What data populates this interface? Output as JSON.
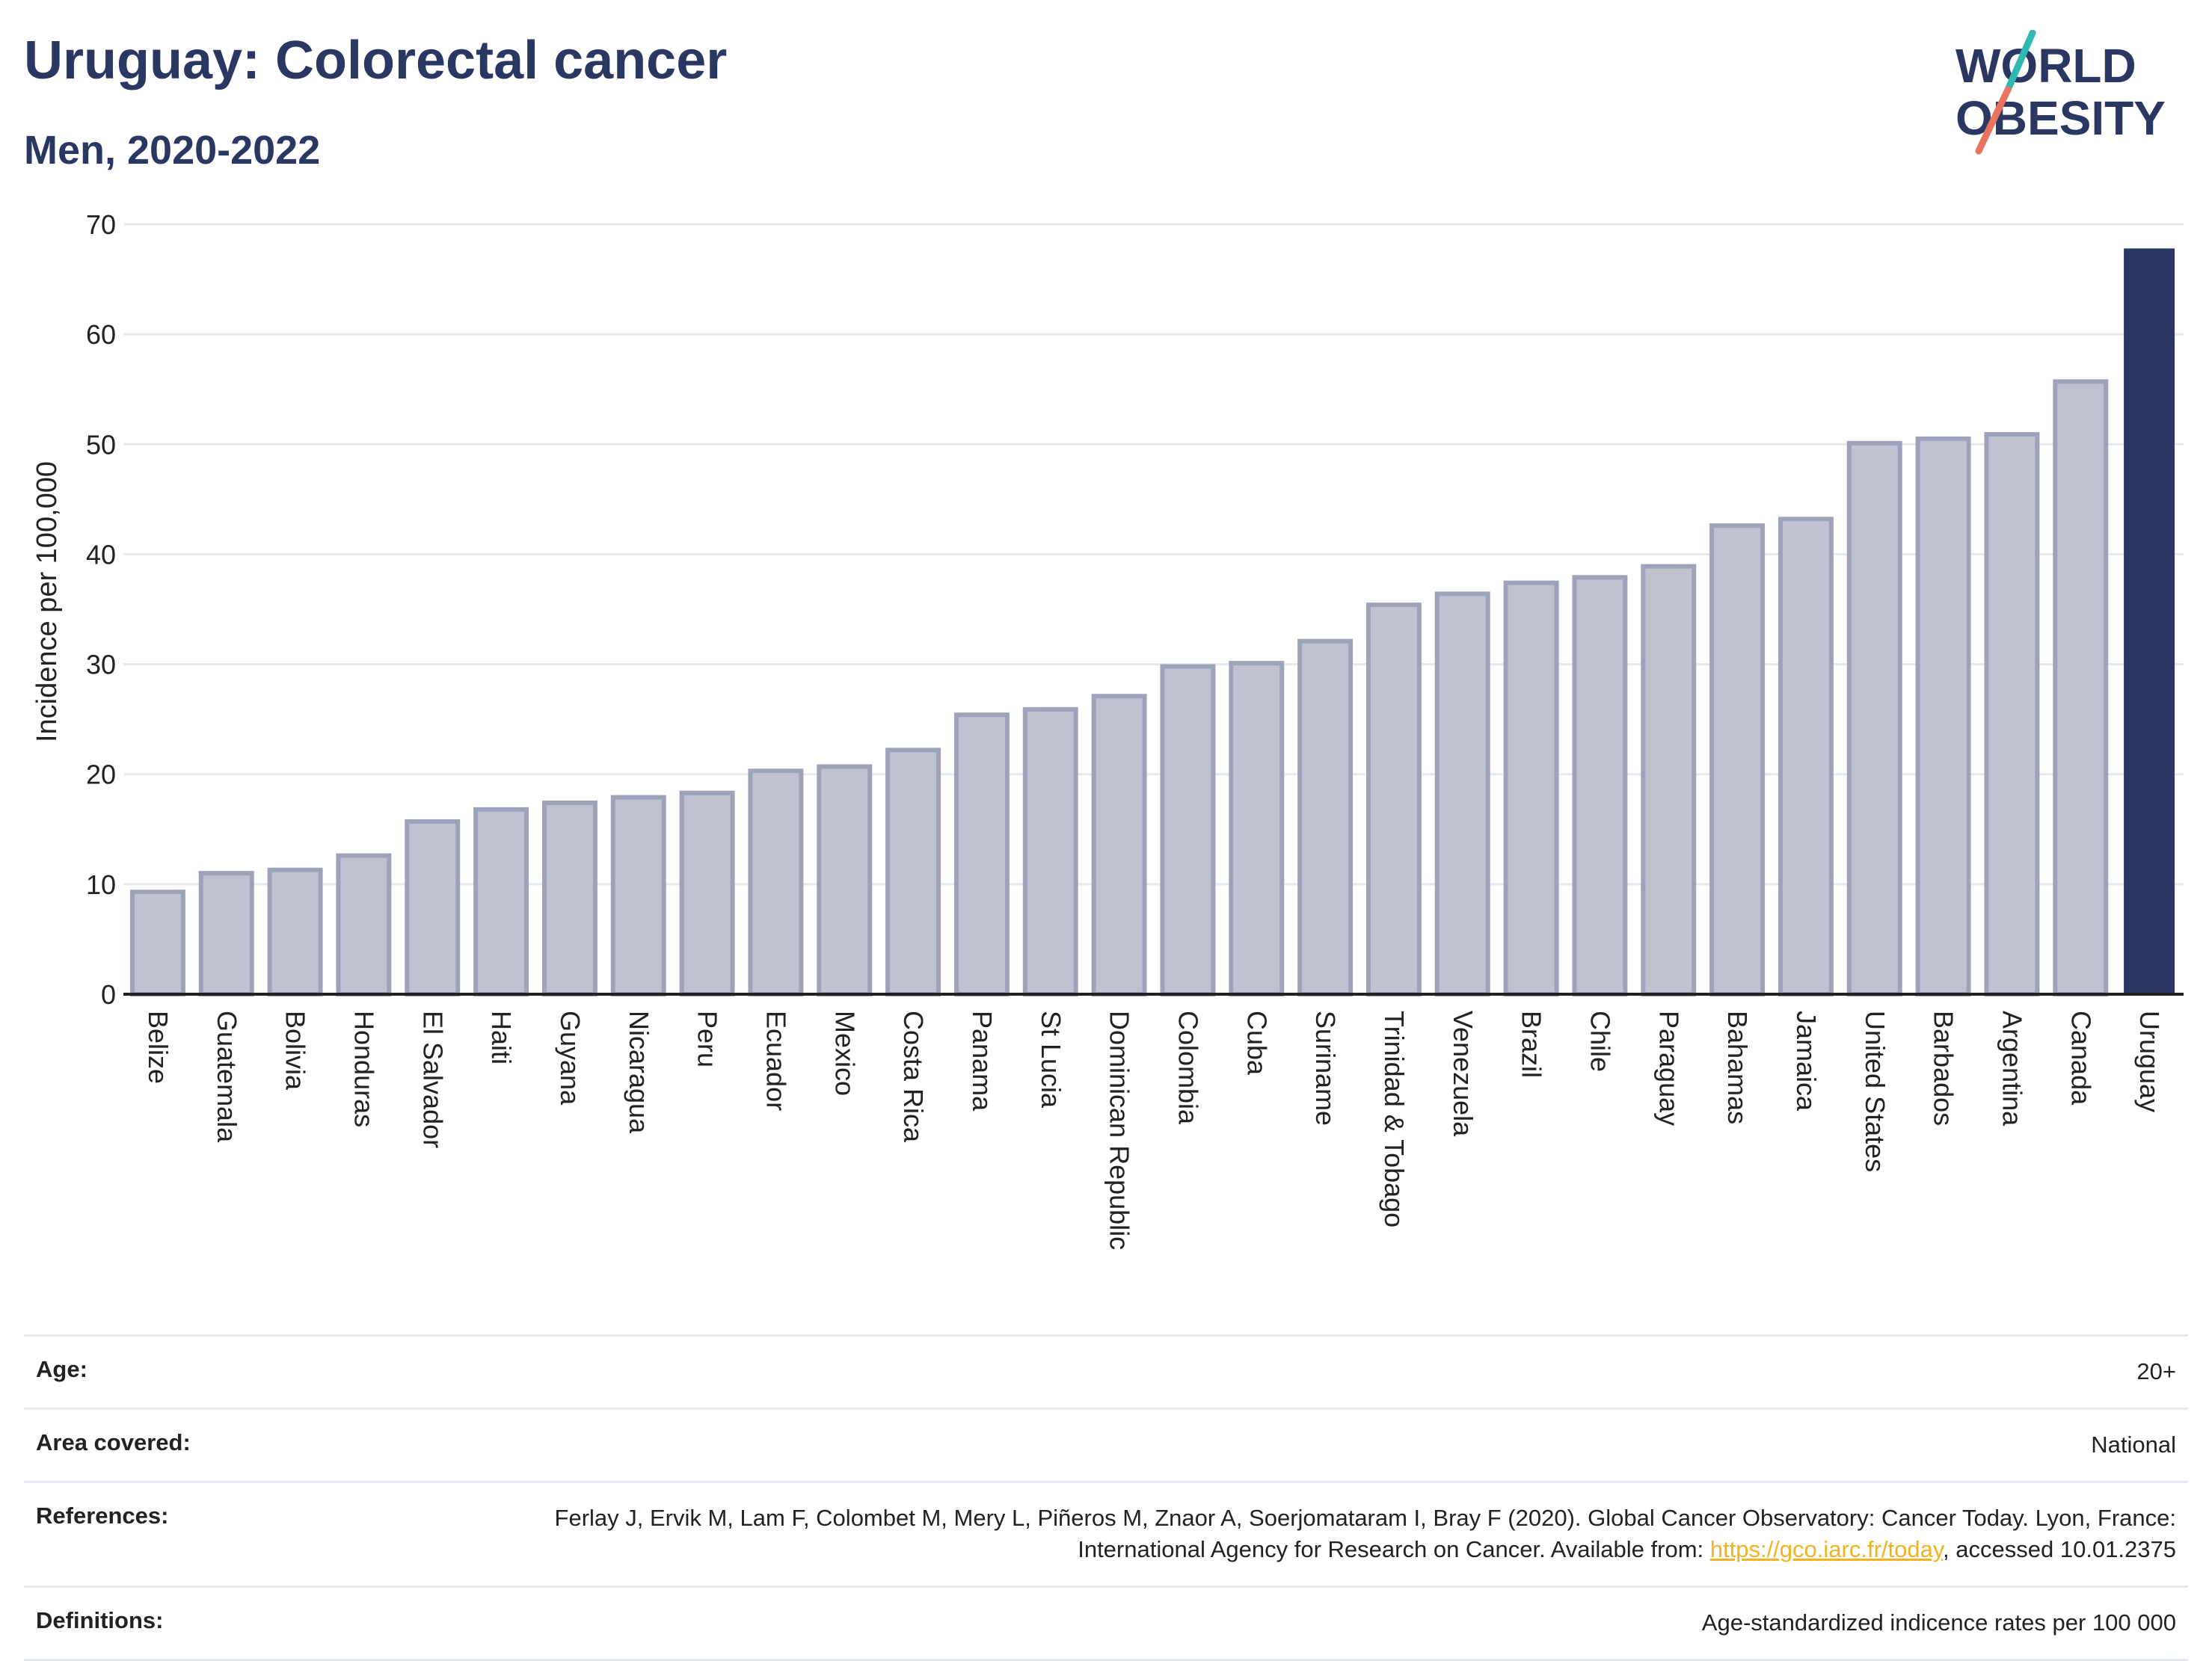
{
  "header": {
    "title": "Uruguay: Colorectal cancer",
    "subtitle": "Men, 2020-2022"
  },
  "logo": {
    "line1": "WORLD",
    "line2": "OBESITY",
    "accent_teal": "#2fb9b0",
    "accent_coral": "#e8735f",
    "text_color": "#2b3763"
  },
  "colors": {
    "bar_default": "#bfc3d1",
    "bar_border": "#9ea3ba",
    "bar_highlight": "#2b3763",
    "grid": "#e6e8ee"
  },
  "chart_data": {
    "type": "bar",
    "title": "Uruguay: Colorectal cancer",
    "subtitle": "Men, 2020-2022",
    "xlabel": "",
    "ylabel": "Incidence per 100,000",
    "ylim": [
      0,
      70
    ],
    "yticks": [
      0,
      10,
      20,
      30,
      40,
      50,
      60,
      70
    ],
    "grid": true,
    "highlight": "Uruguay",
    "categories": [
      "Belize",
      "Guatemala",
      "Bolivia",
      "Honduras",
      "El Salvador",
      "Haiti",
      "Guyana",
      "Nicaragua",
      "Peru",
      "Ecuador",
      "Mexico",
      "Costa Rica",
      "Panama",
      "St Lucia",
      "Dominican Republic",
      "Colombia",
      "Cuba",
      "Suriname",
      "Trinidad & Tobago",
      "Venezuela",
      "Brazil",
      "Chile",
      "Paraguay",
      "Bahamas",
      "Jamaica",
      "United States",
      "Barbados",
      "Argentina",
      "Canada",
      "Uruguay"
    ],
    "values": [
      9.3,
      11.0,
      11.3,
      12.6,
      15.7,
      16.8,
      17.4,
      17.9,
      18.3,
      20.3,
      20.7,
      22.2,
      25.4,
      25.9,
      27.1,
      29.8,
      30.1,
      32.1,
      35.4,
      36.4,
      37.4,
      37.9,
      38.9,
      42.6,
      43.2,
      50.1,
      50.5,
      50.9,
      55.7,
      67.8
    ]
  },
  "meta": {
    "age_label": "Age:",
    "age_value": "20+",
    "area_label": "Area covered:",
    "area_value": "National",
    "references_label": "References:",
    "references_text": "Ferlay J, Ervik M, Lam F, Colombet M, Mery L, Piñeros M, Znaor A, Soerjomataram I, Bray F (2020). Global Cancer Observatory: Cancer Today. Lyon, France: International Agency for Research on Cancer. Available from: ",
    "references_link": "https://gco.iarc.fr/today",
    "references_suffix": ", accessed 10.01.2375",
    "definitions_label": "Definitions:",
    "definitions_value": "Age-standardized indicence rates per 100 000"
  }
}
